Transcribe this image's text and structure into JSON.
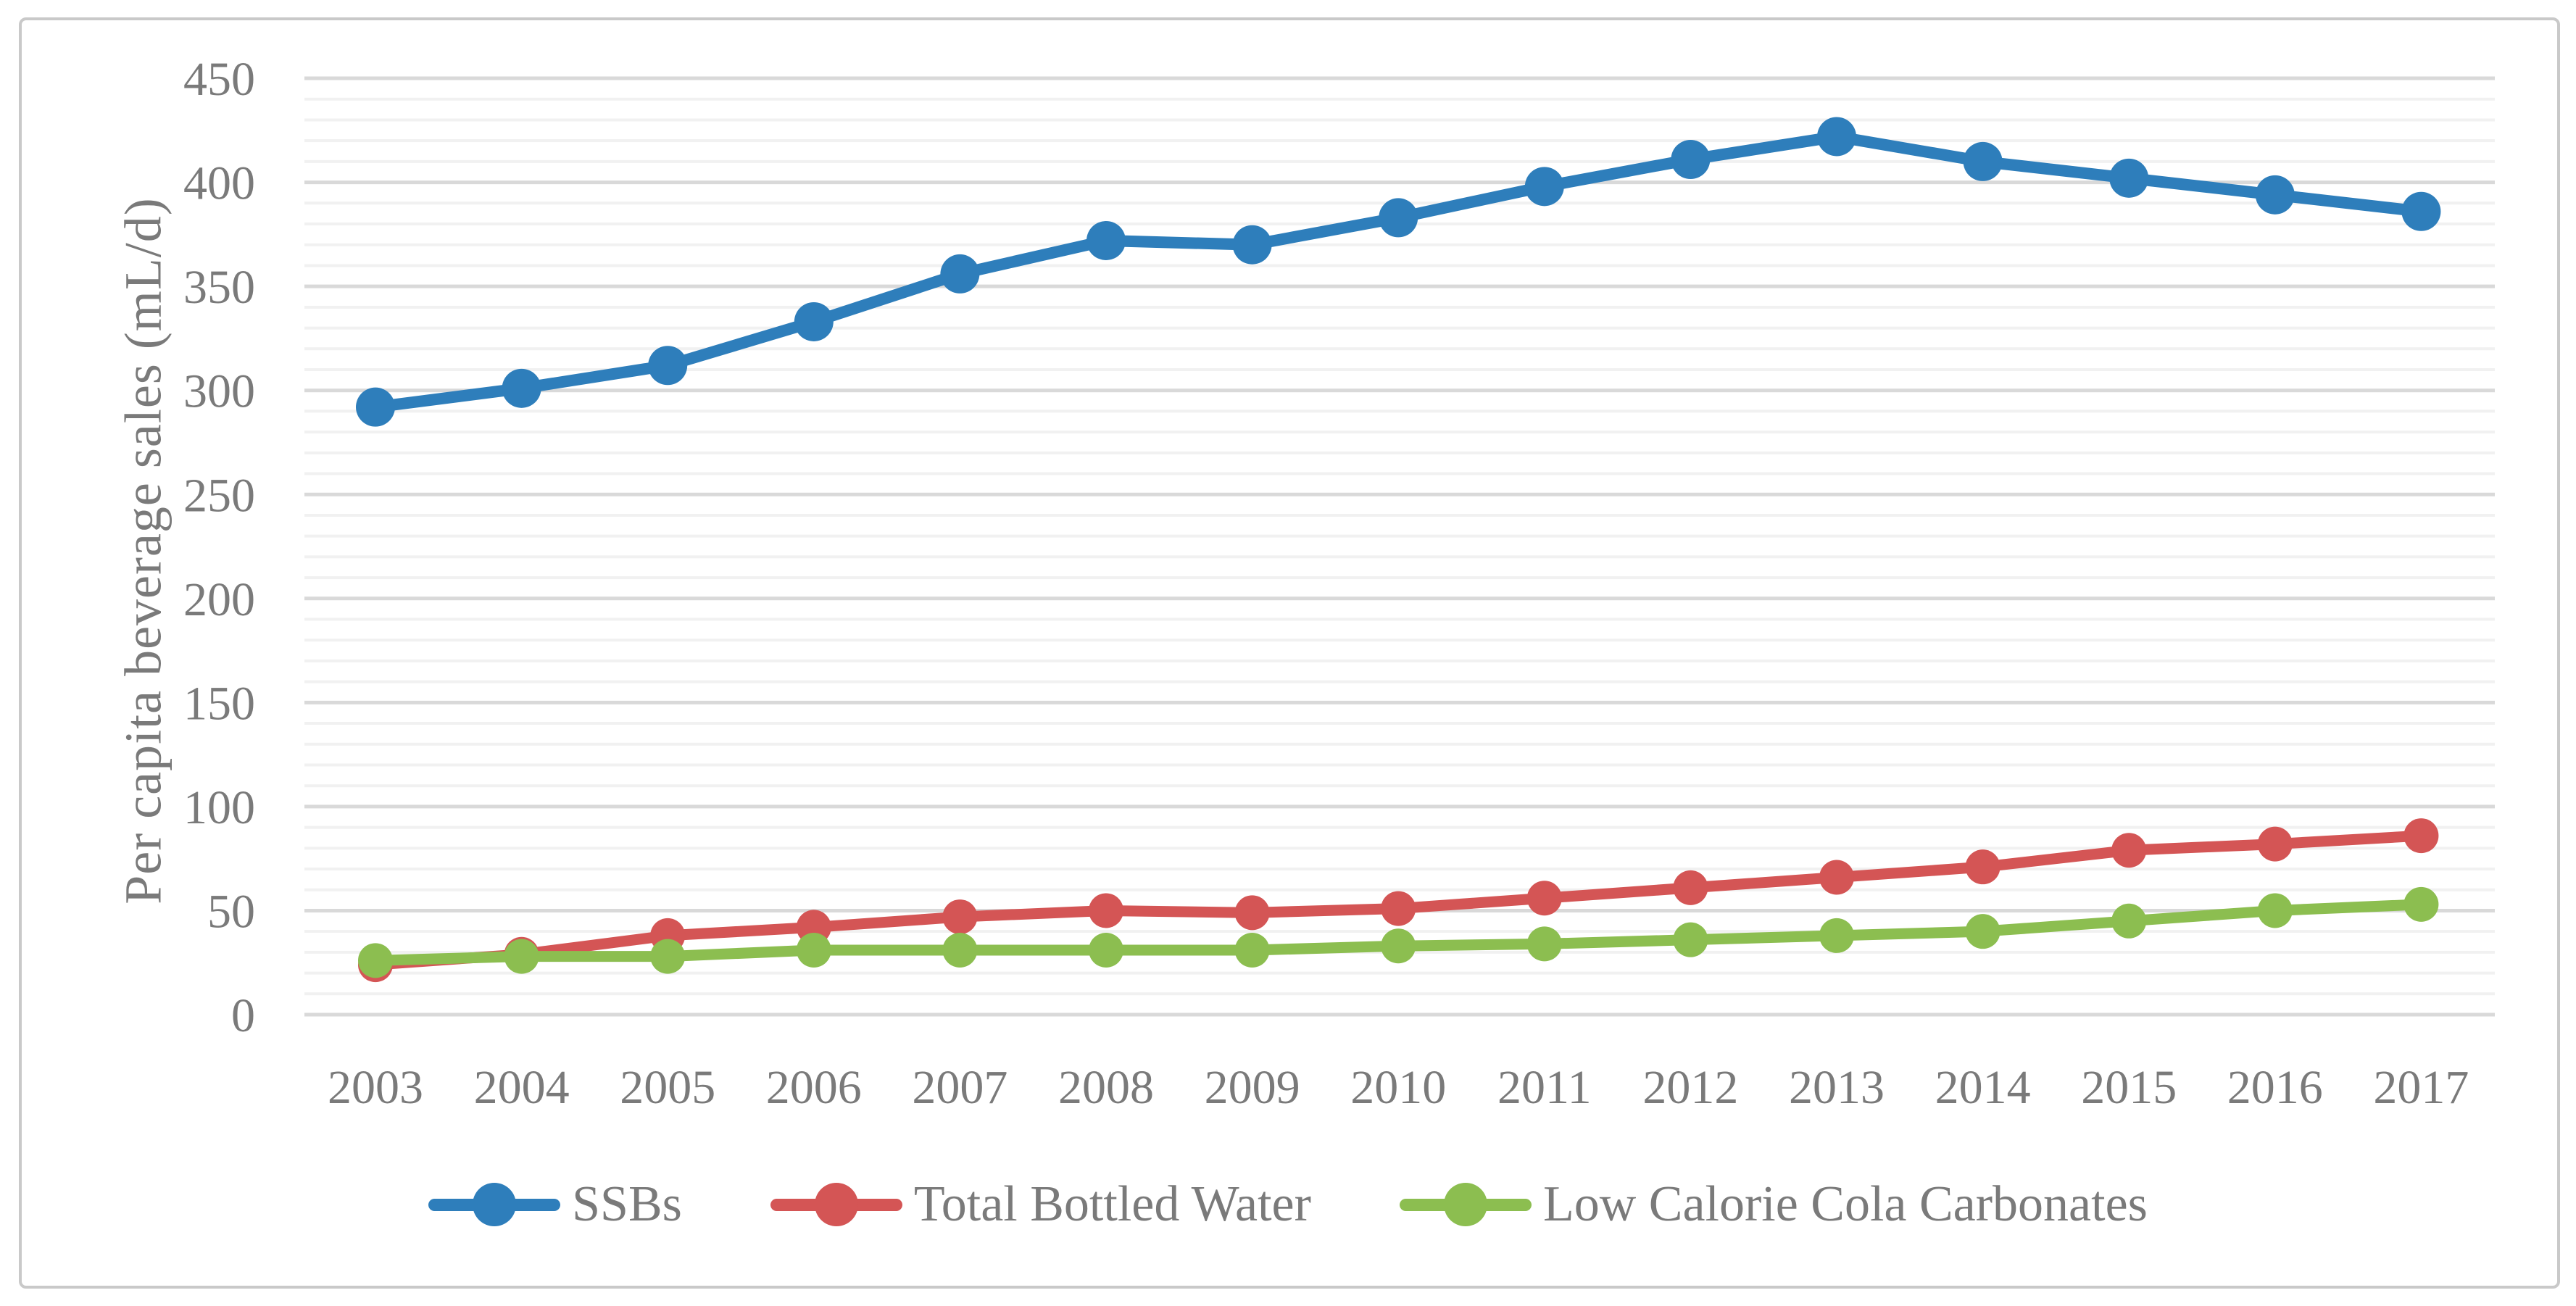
{
  "chart_data": {
    "type": "line",
    "title": "",
    "xlabel": "",
    "ylabel": "Per capita beverage sales (mL/d)",
    "categories": [
      "2003",
      "2004",
      "2005",
      "2006",
      "2007",
      "2008",
      "2009",
      "2010",
      "2011",
      "2012",
      "2013",
      "2014",
      "2015",
      "2016",
      "2017"
    ],
    "series": [
      {
        "name": "SSBs",
        "color": "#2e7ebb",
        "values": [
          292,
          301,
          312,
          333,
          356,
          372,
          370,
          383,
          398,
          411,
          422,
          410,
          402,
          394,
          386
        ]
      },
      {
        "name": "Total Bottled Water",
        "color": "#d45555",
        "values": [
          24,
          29,
          38,
          42,
          47,
          50,
          49,
          51,
          56,
          61,
          66,
          71,
          79,
          82,
          86
        ]
      },
      {
        "name": "Low Calorie Cola Carbonates",
        "color": "#8cbe50",
        "values": [
          26,
          28,
          28,
          31,
          31,
          31,
          31,
          33,
          34,
          36,
          38,
          40,
          45,
          50,
          53
        ]
      }
    ],
    "ylim": [
      0,
      450
    ],
    "ytick_step": 50,
    "yminor_step": 10,
    "ytick_labels": [
      "0",
      "50",
      "100",
      "150",
      "200",
      "250",
      "300",
      "350",
      "400",
      "450"
    ],
    "grid": "on",
    "legend_position": "bottom",
    "colors": {
      "axis_text": "#7a7a7a",
      "major_gridline": "#d9d9d9",
      "minor_gridline": "#f1f1f1",
      "chart_border": "#c9c9c9",
      "background": "#ffffff"
    }
  }
}
